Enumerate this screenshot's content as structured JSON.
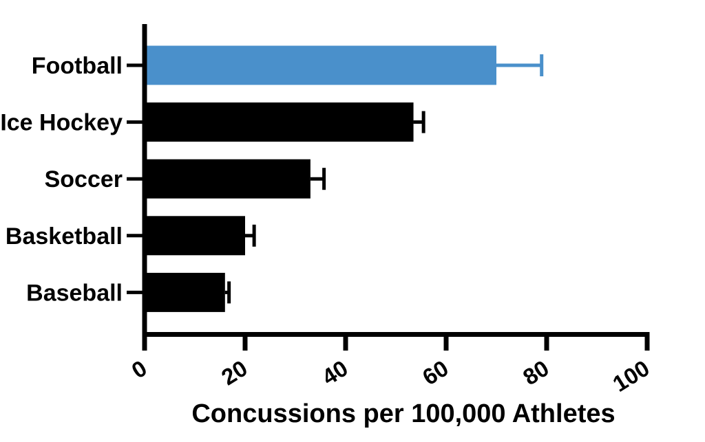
{
  "chart_data": {
    "type": "bar",
    "orientation": "horizontal",
    "title": "",
    "xlabel": "Concussions per 100,000 Athletes",
    "ylabel": "",
    "categories": [
      "Football",
      "Ice Hockey",
      "Soccer",
      "Basketball",
      "Baseball"
    ],
    "values": [
      70,
      53.5,
      33,
      20,
      16
    ],
    "errors_plus": [
      9,
      2,
      2.7,
      1.8,
      0.8
    ],
    "error_bar_style": "plus-direction with end caps",
    "bar_colors": [
      "#4a90cb",
      "#000000",
      "#000000",
      "#000000",
      "#000000"
    ],
    "highlight_category": "Football",
    "xlim": [
      0,
      100
    ],
    "xticks": [
      0,
      20,
      40,
      60,
      80,
      100
    ],
    "xtick_labels": [
      "0",
      "20",
      "40",
      "60",
      "80",
      "100"
    ],
    "xtick_label_rotation_deg": -32,
    "grid": false,
    "legend": false
  },
  "colors": {
    "background": "#ffffff",
    "axis": "#000000",
    "text": "#000000",
    "highlight_blue": "#4a90cb",
    "bar_default": "#000000"
  }
}
